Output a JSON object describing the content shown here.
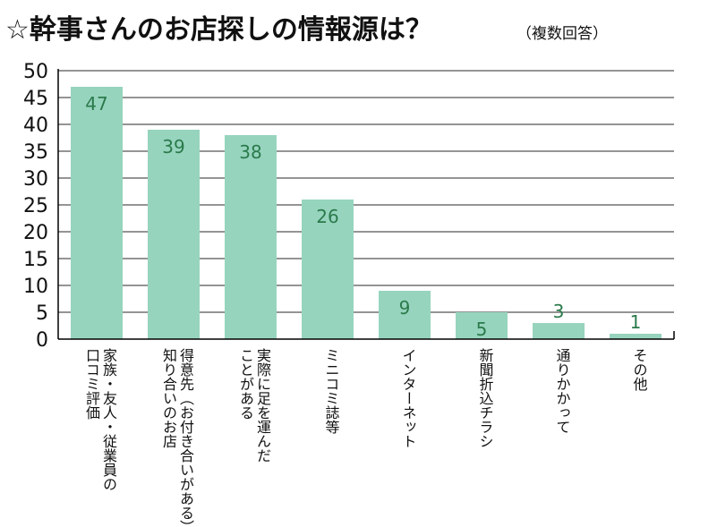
{
  "title": "☆幹事さんのお店探しの情報源は？",
  "subtitle": "（複数回答）",
  "colors": {
    "bar": "#97d4be",
    "value_text": "#2b7a4b",
    "grid": "#555555",
    "axis": "#000000"
  },
  "chart_data": {
    "type": "bar",
    "categories": [
      [
        "家族・友人・従業員の",
        "口コミ評価"
      ],
      [
        "得意先（お付き合いがある）",
        "知り合いのお店"
      ],
      [
        "実際に足を運んだ",
        "ことがある"
      ],
      [
        "ミニコミ誌等"
      ],
      [
        "インターネット"
      ],
      [
        "新聞折込チラシ"
      ],
      [
        "通りかかって"
      ],
      [
        "その他"
      ]
    ],
    "values": [
      47,
      39,
      38,
      26,
      9,
      5,
      3,
      1
    ],
    "ylim": [
      0,
      50
    ],
    "yticks": [
      0,
      5,
      10,
      15,
      20,
      25,
      30,
      35,
      40,
      45,
      50
    ],
    "grid": true,
    "xlabel": "",
    "ylabel": ""
  }
}
